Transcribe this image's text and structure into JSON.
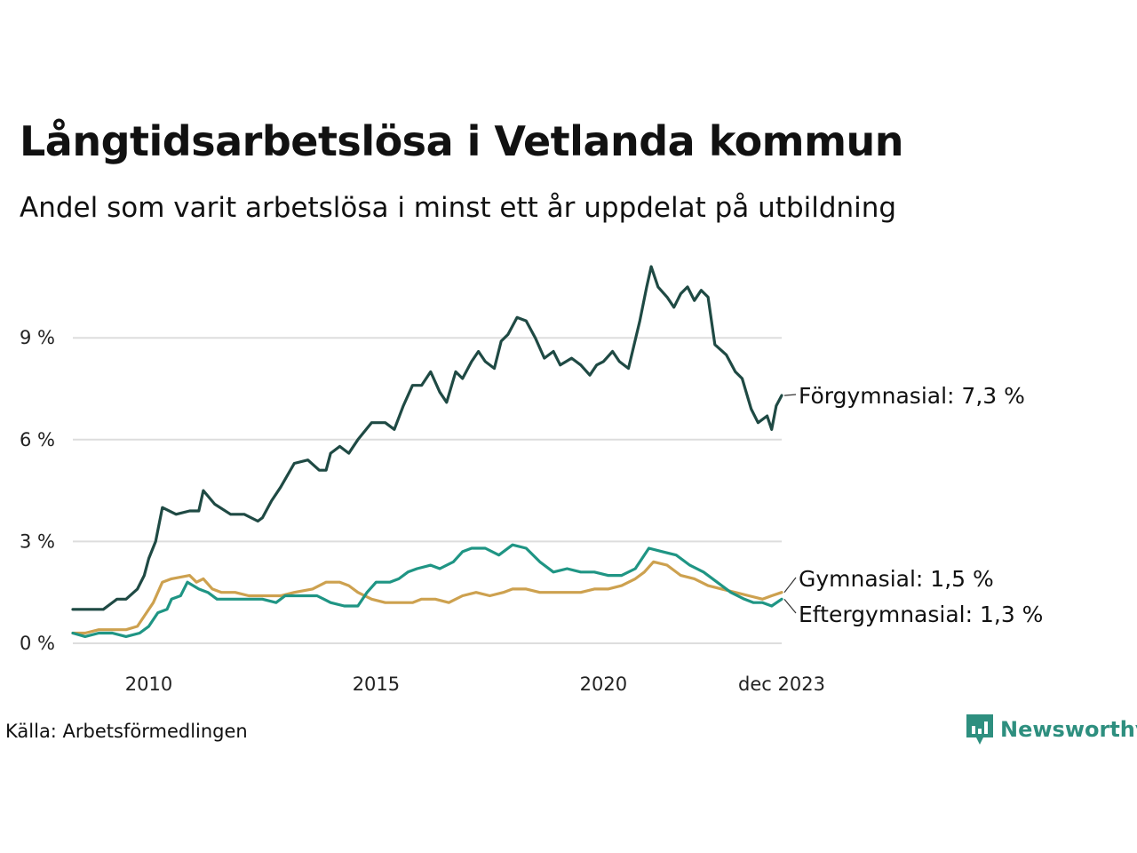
{
  "header": {
    "title": "Långtidsarbetslösa i Vetlanda kommun",
    "subtitle": "Andel som varit arbetslösa i minst ett år uppdelat på utbildning"
  },
  "footer": {
    "source": "Källa: Arbetsförmedlingen",
    "brand": "Newsworthy"
  },
  "colors": {
    "forgymnasial": "#1f4a44",
    "gymnasial": "#cda14f",
    "eftergymnasial": "#1f9584",
    "grid": "#dddddd",
    "brand": "#2e8f7f"
  },
  "chart_data": {
    "type": "line",
    "title": "Långtidsarbetslösa i Vetlanda kommun",
    "subtitle": "Andel som varit arbetslösa i minst ett år uppdelat på utbildning",
    "xlabel": "",
    "ylabel": "",
    "x_range": [
      2008.33,
      2023.92
    ],
    "ylim": [
      0,
      11.5
    ],
    "y_ticks": [
      0,
      3,
      6,
      9
    ],
    "y_tick_labels": [
      "0 %",
      "3 %",
      "6 %",
      "9 %"
    ],
    "x_ticks": [
      2010,
      2015,
      2020,
      2023.92
    ],
    "x_tick_labels": [
      "2010",
      "2015",
      "2020",
      "dec 2023"
    ],
    "grid": true,
    "series": [
      {
        "name": "Förgymnasial",
        "label": "Förgymnasial: 7,3 %",
        "color": "#1f4a44",
        "points": [
          [
            2008.33,
            1.0
          ],
          [
            2008.6,
            1.0
          ],
          [
            2009.0,
            1.0
          ],
          [
            2009.3,
            1.3
          ],
          [
            2009.5,
            1.3
          ],
          [
            2009.75,
            1.6
          ],
          [
            2009.9,
            2.0
          ],
          [
            2010.0,
            2.5
          ],
          [
            2010.15,
            3.0
          ],
          [
            2010.3,
            4.0
          ],
          [
            2010.6,
            3.8
          ],
          [
            2010.9,
            3.9
          ],
          [
            2011.1,
            3.9
          ],
          [
            2011.2,
            4.5
          ],
          [
            2011.45,
            4.1
          ],
          [
            2011.8,
            3.8
          ],
          [
            2012.1,
            3.8
          ],
          [
            2012.4,
            3.6
          ],
          [
            2012.5,
            3.7
          ],
          [
            2012.7,
            4.2
          ],
          [
            2012.9,
            4.6
          ],
          [
            2013.2,
            5.3
          ],
          [
            2013.5,
            5.4
          ],
          [
            2013.75,
            5.1
          ],
          [
            2013.9,
            5.1
          ],
          [
            2014.0,
            5.6
          ],
          [
            2014.2,
            5.8
          ],
          [
            2014.4,
            5.6
          ],
          [
            2014.6,
            6.0
          ],
          [
            2014.9,
            6.5
          ],
          [
            2015.2,
            6.5
          ],
          [
            2015.4,
            6.3
          ],
          [
            2015.6,
            7.0
          ],
          [
            2015.8,
            7.6
          ],
          [
            2016.0,
            7.6
          ],
          [
            2016.2,
            8.0
          ],
          [
            2016.4,
            7.4
          ],
          [
            2016.55,
            7.1
          ],
          [
            2016.75,
            8.0
          ],
          [
            2016.9,
            7.8
          ],
          [
            2017.1,
            8.3
          ],
          [
            2017.25,
            8.6
          ],
          [
            2017.4,
            8.3
          ],
          [
            2017.6,
            8.1
          ],
          [
            2017.75,
            8.9
          ],
          [
            2017.9,
            9.1
          ],
          [
            2018.1,
            9.6
          ],
          [
            2018.3,
            9.5
          ],
          [
            2018.5,
            9.0
          ],
          [
            2018.7,
            8.4
          ],
          [
            2018.9,
            8.6
          ],
          [
            2019.05,
            8.2
          ],
          [
            2019.3,
            8.4
          ],
          [
            2019.5,
            8.2
          ],
          [
            2019.7,
            7.9
          ],
          [
            2019.85,
            8.2
          ],
          [
            2020.0,
            8.3
          ],
          [
            2020.2,
            8.6
          ],
          [
            2020.35,
            8.3
          ],
          [
            2020.55,
            8.1
          ],
          [
            2020.8,
            9.5
          ],
          [
            2020.95,
            10.5
          ],
          [
            2021.05,
            11.1
          ],
          [
            2021.2,
            10.5
          ],
          [
            2021.4,
            10.2
          ],
          [
            2021.55,
            9.9
          ],
          [
            2021.7,
            10.3
          ],
          [
            2021.85,
            10.5
          ],
          [
            2022.0,
            10.1
          ],
          [
            2022.15,
            10.4
          ],
          [
            2022.3,
            10.2
          ],
          [
            2022.45,
            8.8
          ],
          [
            2022.7,
            8.5
          ],
          [
            2022.9,
            8.0
          ],
          [
            2023.05,
            7.8
          ],
          [
            2023.25,
            6.9
          ],
          [
            2023.4,
            6.5
          ],
          [
            2023.6,
            6.7
          ],
          [
            2023.7,
            6.3
          ],
          [
            2023.8,
            7.0
          ],
          [
            2023.92,
            7.3
          ]
        ]
      },
      {
        "name": "Gymnasial",
        "label": "Gymnasial: 1,5 %",
        "color": "#cda14f",
        "points": [
          [
            2008.33,
            0.3
          ],
          [
            2008.6,
            0.3
          ],
          [
            2008.9,
            0.4
          ],
          [
            2009.2,
            0.4
          ],
          [
            2009.5,
            0.4
          ],
          [
            2009.75,
            0.5
          ],
          [
            2009.9,
            0.8
          ],
          [
            2010.1,
            1.2
          ],
          [
            2010.3,
            1.8
          ],
          [
            2010.5,
            1.9
          ],
          [
            2010.9,
            2.0
          ],
          [
            2011.05,
            1.8
          ],
          [
            2011.2,
            1.9
          ],
          [
            2011.4,
            1.6
          ],
          [
            2011.6,
            1.5
          ],
          [
            2011.9,
            1.5
          ],
          [
            2012.2,
            1.4
          ],
          [
            2012.5,
            1.4
          ],
          [
            2012.9,
            1.4
          ],
          [
            2013.2,
            1.5
          ],
          [
            2013.6,
            1.6
          ],
          [
            2013.9,
            1.8
          ],
          [
            2014.2,
            1.8
          ],
          [
            2014.4,
            1.7
          ],
          [
            2014.6,
            1.5
          ],
          [
            2014.9,
            1.3
          ],
          [
            2015.2,
            1.2
          ],
          [
            2015.5,
            1.2
          ],
          [
            2015.8,
            1.2
          ],
          [
            2016.0,
            1.3
          ],
          [
            2016.3,
            1.3
          ],
          [
            2016.6,
            1.2
          ],
          [
            2016.9,
            1.4
          ],
          [
            2017.2,
            1.5
          ],
          [
            2017.5,
            1.4
          ],
          [
            2017.8,
            1.5
          ],
          [
            2018.0,
            1.6
          ],
          [
            2018.3,
            1.6
          ],
          [
            2018.6,
            1.5
          ],
          [
            2018.9,
            1.5
          ],
          [
            2019.2,
            1.5
          ],
          [
            2019.5,
            1.5
          ],
          [
            2019.8,
            1.6
          ],
          [
            2020.1,
            1.6
          ],
          [
            2020.4,
            1.7
          ],
          [
            2020.7,
            1.9
          ],
          [
            2020.9,
            2.1
          ],
          [
            2021.1,
            2.4
          ],
          [
            2021.4,
            2.3
          ],
          [
            2021.7,
            2.0
          ],
          [
            2022.0,
            1.9
          ],
          [
            2022.3,
            1.7
          ],
          [
            2022.6,
            1.6
          ],
          [
            2022.9,
            1.5
          ],
          [
            2023.2,
            1.4
          ],
          [
            2023.5,
            1.3
          ],
          [
            2023.7,
            1.4
          ],
          [
            2023.92,
            1.5
          ]
        ]
      },
      {
        "name": "Eftergymnasial",
        "label": "Eftergymnasial: 1,3 %",
        "color": "#1f9584",
        "points": [
          [
            2008.33,
            0.3
          ],
          [
            2008.6,
            0.2
          ],
          [
            2008.9,
            0.3
          ],
          [
            2009.2,
            0.3
          ],
          [
            2009.5,
            0.2
          ],
          [
            2009.8,
            0.3
          ],
          [
            2010.0,
            0.5
          ],
          [
            2010.2,
            0.9
          ],
          [
            2010.4,
            1.0
          ],
          [
            2010.5,
            1.3
          ],
          [
            2010.7,
            1.4
          ],
          [
            2010.85,
            1.8
          ],
          [
            2011.1,
            1.6
          ],
          [
            2011.3,
            1.5
          ],
          [
            2011.5,
            1.3
          ],
          [
            2011.8,
            1.3
          ],
          [
            2012.1,
            1.3
          ],
          [
            2012.5,
            1.3
          ],
          [
            2012.8,
            1.2
          ],
          [
            2013.0,
            1.4
          ],
          [
            2013.3,
            1.4
          ],
          [
            2013.7,
            1.4
          ],
          [
            2013.85,
            1.3
          ],
          [
            2014.0,
            1.2
          ],
          [
            2014.3,
            1.1
          ],
          [
            2014.6,
            1.1
          ],
          [
            2014.8,
            1.5
          ],
          [
            2015.0,
            1.8
          ],
          [
            2015.3,
            1.8
          ],
          [
            2015.5,
            1.9
          ],
          [
            2015.7,
            2.1
          ],
          [
            2015.9,
            2.2
          ],
          [
            2016.2,
            2.3
          ],
          [
            2016.4,
            2.2
          ],
          [
            2016.7,
            2.4
          ],
          [
            2016.9,
            2.7
          ],
          [
            2017.1,
            2.8
          ],
          [
            2017.4,
            2.8
          ],
          [
            2017.7,
            2.6
          ],
          [
            2018.0,
            2.9
          ],
          [
            2018.3,
            2.8
          ],
          [
            2018.6,
            2.4
          ],
          [
            2018.9,
            2.1
          ],
          [
            2019.2,
            2.2
          ],
          [
            2019.5,
            2.1
          ],
          [
            2019.8,
            2.1
          ],
          [
            2020.1,
            2.0
          ],
          [
            2020.4,
            2.0
          ],
          [
            2020.7,
            2.2
          ],
          [
            2021.0,
            2.8
          ],
          [
            2021.3,
            2.7
          ],
          [
            2021.6,
            2.6
          ],
          [
            2021.9,
            2.3
          ],
          [
            2022.2,
            2.1
          ],
          [
            2022.5,
            1.8
          ],
          [
            2022.8,
            1.5
          ],
          [
            2023.1,
            1.3
          ],
          [
            2023.3,
            1.2
          ],
          [
            2023.5,
            1.2
          ],
          [
            2023.7,
            1.1
          ],
          [
            2023.92,
            1.3
          ]
        ]
      }
    ]
  }
}
